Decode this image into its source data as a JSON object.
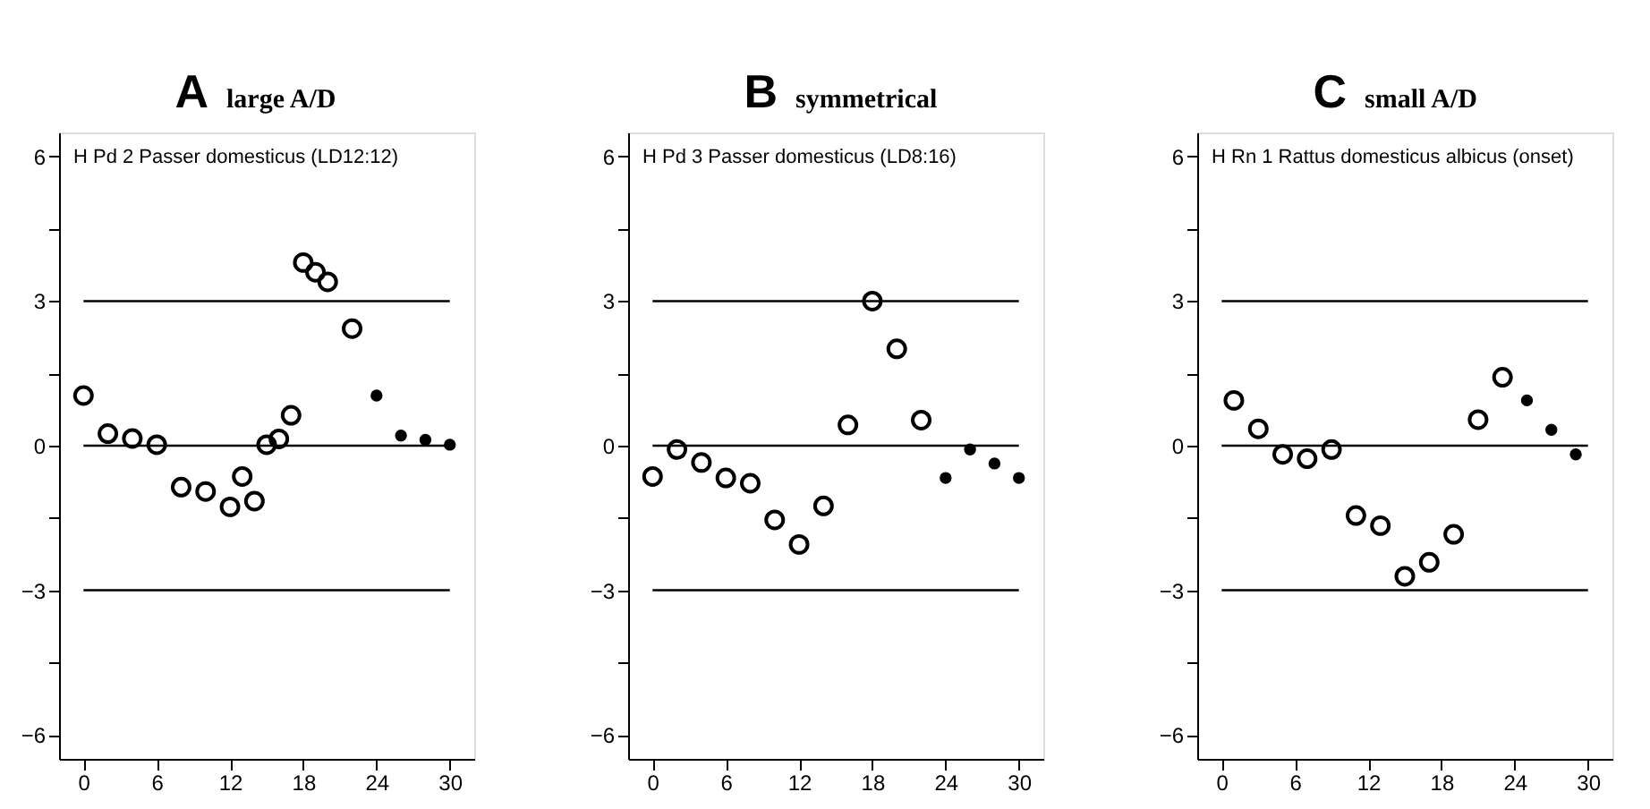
{
  "chart_data": [
    {
      "type": "scatter",
      "title": "A",
      "subtitle": "large A/D",
      "annotations": [
        "H Pd 2  Passer domesticus (LD12:12)"
      ],
      "xlim": [
        -2,
        32
      ],
      "xticks": [
        0,
        6,
        12,
        18,
        24,
        30
      ],
      "ylim": [
        -6.5,
        6.5
      ],
      "yticks": [
        -6,
        {
          "value": -4.5,
          "label": null
        },
        -3,
        {
          "value": -1.5,
          "label": null
        },
        0,
        {
          "value": 1.5,
          "label": null
        },
        3,
        {
          "value": 4.5,
          "label": null
        },
        6
      ],
      "grid": false,
      "marker": "circle",
      "ref_lines": [
        {
          "axis": "y",
          "value": 3,
          "color": "#000000"
        },
        {
          "axis": "y",
          "value": 0,
          "color": "#000000"
        },
        {
          "axis": "y",
          "value": -3,
          "color": "#000000"
        }
      ],
      "series": [
        {
          "color": "#000000",
          "x": [
            0,
            2,
            4,
            6,
            8,
            10,
            12,
            13,
            14,
            15,
            16,
            17,
            18,
            19,
            20,
            22
          ],
          "values": [
            1.04,
            0.25,
            0.15,
            0.02,
            -0.86,
            -0.95,
            -1.27,
            -0.64,
            -1.15,
            0.02,
            0.14,
            0.63,
            3.8,
            3.6,
            3.4,
            2.43
          ]
        },
        {
          "color": "#000000",
          "x": [
            24,
            26,
            28,
            30
          ],
          "values": [
            1.04,
            0.21,
            0.12,
            0.02
          ]
        }
      ]
    },
    {
      "type": "scatter",
      "title": "B",
      "subtitle": "symmetrical",
      "annotations": [
        "H Pd 3  Passer domesticus (LD8:16)"
      ],
      "xlim": [
        -2,
        32
      ],
      "xticks": [
        0,
        6,
        12,
        18,
        24,
        30
      ],
      "ylim": [
        -6.5,
        6.5
      ],
      "yticks": [
        -6,
        {
          "value": -4.5,
          "label": null
        },
        -3,
        {
          "value": -1.5,
          "label": null
        },
        0,
        {
          "value": 1.5,
          "label": null
        },
        3,
        {
          "value": 4.5,
          "label": null
        },
        6
      ],
      "grid": false,
      "marker": "circle",
      "ref_lines": [
        {
          "axis": "y",
          "value": 3,
          "color": "#000000"
        },
        {
          "axis": "y",
          "value": 0,
          "color": "#000000"
        },
        {
          "axis": "y",
          "value": -3,
          "color": "#000000"
        }
      ],
      "series": [
        {
          "color": "#000000",
          "x": [
            0,
            2,
            4,
            6,
            8,
            10,
            12,
            14,
            16,
            18,
            20,
            22
          ],
          "values": [
            -0.64,
            -0.08,
            -0.35,
            -0.67,
            -0.78,
            -1.54,
            -2.05,
            -1.25,
            0.43,
            3.0,
            2.01,
            0.53
          ]
        },
        {
          "color": "#000000",
          "x": [
            24,
            26,
            28,
            30
          ],
          "values": [
            -0.67,
            -0.08,
            -0.37,
            -0.67
          ]
        }
      ]
    },
    {
      "type": "scatter",
      "title": "C",
      "subtitle": "small A/D",
      "annotations": [
        "H Rn 1  Rattus domesticus albicus (onset)"
      ],
      "xlim": [
        -2,
        32
      ],
      "xticks": [
        0,
        6,
        12,
        18,
        24,
        30
      ],
      "ylim": [
        -6.5,
        6.5
      ],
      "yticks": [
        -6,
        {
          "value": -4.5,
          "label": null
        },
        -3,
        {
          "value": -1.5,
          "label": null
        },
        0,
        {
          "value": 1.5,
          "label": null
        },
        3,
        {
          "value": 4.5,
          "label": null
        },
        6
      ],
      "grid": false,
      "marker": "circle",
      "ref_lines": [
        {
          "axis": "y",
          "value": 3,
          "color": "#000000"
        },
        {
          "axis": "y",
          "value": 0,
          "color": "#000000"
        },
        {
          "axis": "y",
          "value": -3,
          "color": "#000000"
        }
      ],
      "series": [
        {
          "color": "#000000",
          "x": [
            1,
            3,
            5,
            7,
            9,
            11,
            13,
            15,
            17,
            19,
            21,
            23
          ],
          "values": [
            0.94,
            0.35,
            -0.18,
            -0.27,
            -0.08,
            -1.45,
            -1.66,
            -2.71,
            -2.42,
            -1.84,
            0.54,
            1.42
          ]
        },
        {
          "color": "#000000",
          "x": [
            25,
            27,
            29
          ],
          "values": [
            0.94,
            0.33,
            -0.18
          ]
        }
      ]
    }
  ]
}
